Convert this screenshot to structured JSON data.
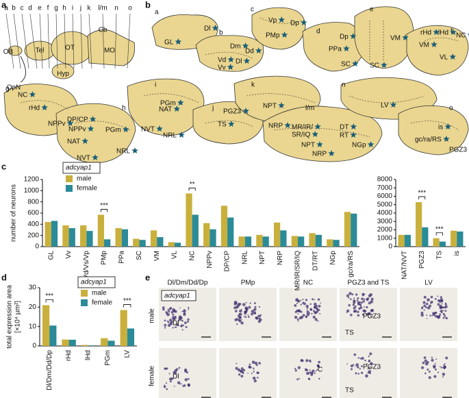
{
  "panel_labels": [
    "a",
    "b",
    "c",
    "d",
    "e"
  ],
  "diagram": {
    "a": {
      "section_letters": [
        "a",
        "b",
        "c",
        "d",
        "e",
        "f",
        "g",
        "h",
        "i",
        "j",
        "k",
        "l/m",
        "n",
        "o"
      ],
      "labels": [
        "Tel",
        "OT",
        "MO",
        "Cb",
        "OB",
        "Hyp",
        "OpN"
      ]
    },
    "b": {
      "section_letters": [
        "a",
        "b",
        "c",
        "d",
        "e",
        "f",
        "g",
        "h",
        "i",
        "j",
        "k",
        "l/m",
        "n",
        "o"
      ],
      "regions": [
        "Dl",
        "GL",
        "Dm",
        "Dd",
        "Vd",
        "Dl",
        "Vv",
        "Vp",
        "Dp",
        "PMp",
        "Dp",
        "PPa",
        "SC",
        "SC",
        "VM",
        "rHd",
        "lHd",
        "VM",
        "VL",
        "NC",
        "NC",
        "rHd",
        "NPPv",
        "DP/CP",
        "NPPv",
        "PGm",
        "NAT",
        "NVT",
        "NRL",
        "NAT",
        "PGm",
        "NVT",
        "NRL",
        "PGZ3",
        "TS",
        "NPT",
        "NRP",
        "MR/IR/",
        "SR/IQ",
        "DT",
        "RT",
        "NPT",
        "NRP",
        "NGp",
        "LV",
        "is",
        "gc/ra/RS",
        "PGZ3"
      ]
    }
  },
  "chart_data": [
    {
      "type": "bar",
      "legend_title": "adcyap1",
      "ylabel": "number of neurons",
      "categories": [
        "GL",
        "Vv",
        "Vd/Vs/Vp",
        "PMp",
        "PPa",
        "SC",
        "VM",
        "VL",
        "NC",
        "NPPv",
        "DP/CP",
        "NRL",
        "NPT",
        "NRP",
        "MR/IR/SR/IQ",
        "DT/RT",
        "NGp",
        "gc/ra/RS"
      ],
      "series": [
        {
          "name": "male",
          "color": "#c9b03c",
          "values": [
            440,
            380,
            380,
            570,
            330,
            140,
            290,
            80,
            950,
            420,
            730,
            180,
            210,
            430,
            190,
            240,
            130,
            620
          ]
        },
        {
          "name": "female",
          "color": "#2b8b97",
          "values": [
            460,
            330,
            280,
            130,
            310,
            120,
            170,
            70,
            570,
            310,
            520,
            180,
            180,
            290,
            180,
            210,
            120,
            590
          ]
        }
      ],
      "ylim": [
        0,
        1200
      ],
      "yticks": [
        0,
        200,
        400,
        600,
        800,
        1000,
        1200
      ],
      "annotations": [
        {
          "text": "***",
          "category": "PMp"
        },
        {
          "text": "**",
          "category": "NC"
        }
      ]
    },
    {
      "type": "bar",
      "categories": [
        "NAT/NVT",
        "PGZ3",
        "TS",
        "is"
      ],
      "series": [
        {
          "name": "male",
          "color": "#c9b03c",
          "values": [
            1400,
            5300,
            1000,
            1900
          ]
        },
        {
          "name": "female",
          "color": "#2b8b97",
          "values": [
            1400,
            2300,
            600,
            1800
          ]
        }
      ],
      "ylim": [
        0,
        8000
      ],
      "yticks": [
        0,
        1000,
        2000,
        3000,
        4000,
        5000,
        6000,
        7000,
        8000
      ],
      "annotations": [
        {
          "text": "***",
          "category": "PGZ3"
        },
        {
          "text": "***",
          "category": "TS"
        }
      ]
    },
    {
      "type": "bar",
      "legend_title": "adcyap1",
      "ylabel": "total expression area",
      "ylabel_unit": "[×10⁴ µm²]",
      "categories": [
        "Dl/Dm/Dd/Dp",
        "rHd",
        "lHd",
        "PGm",
        "LV"
      ],
      "series": [
        {
          "name": "male",
          "color": "#c9b03c",
          "values": [
            21,
            3.3,
            0.5,
            4,
            18.5
          ]
        },
        {
          "name": "female",
          "color": "#2b8b97",
          "values": [
            10.5,
            3.2,
            0.3,
            2.7,
            9
          ]
        }
      ],
      "ylim": [
        0,
        30
      ],
      "yticks": [
        0,
        10,
        20,
        30
      ],
      "annotations": [
        {
          "text": "***",
          "category": "Dl/Dm/Dd/Dp"
        },
        {
          "text": "***",
          "category": "LV"
        }
      ]
    }
  ],
  "micrographs": {
    "gene": "adcyap1",
    "columns": [
      "Dl/Dm/Dd/Dp",
      "PMp",
      "NC",
      "PGZ3 and TS",
      "LV"
    ],
    "rows": [
      "male",
      "female"
    ],
    "labels": [
      "Dl",
      "PGZ3",
      "TS",
      "Dl",
      "C",
      "PGZ3",
      "TS"
    ]
  }
}
